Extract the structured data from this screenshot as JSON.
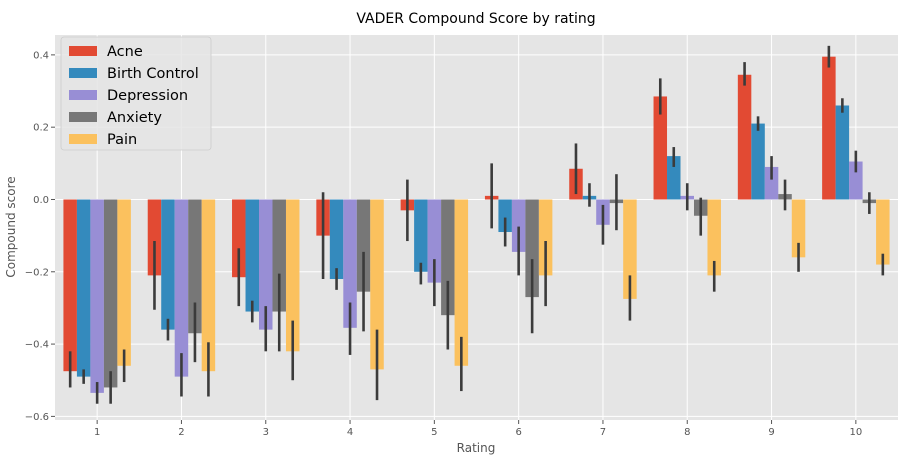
{
  "chart_data": {
    "type": "bar",
    "title": "VADER Compound Score by rating",
    "xlabel": "Rating",
    "ylabel": "Compound score",
    "categories": [
      "1",
      "2",
      "3",
      "4",
      "5",
      "6",
      "7",
      "8",
      "9",
      "10"
    ],
    "ylim": [
      -0.61,
      0.455
    ],
    "yticks": [
      -0.6,
      -0.4,
      -0.2,
      0.0,
      0.2,
      0.4
    ],
    "ytick_labels": [
      "−0.6",
      "−0.4",
      "−0.2",
      "0.0",
      "0.2",
      "0.4"
    ],
    "grid": true,
    "legend_position": "top-left",
    "series": [
      {
        "name": "Acne",
        "color": "#E24A33",
        "values": [
          -0.475,
          -0.21,
          -0.215,
          -0.1,
          -0.03,
          0.01,
          0.085,
          0.285,
          0.345,
          0.395
        ],
        "ci": [
          [
            -0.52,
            -0.42
          ],
          [
            -0.305,
            -0.115
          ],
          [
            -0.295,
            -0.135
          ],
          [
            -0.22,
            0.02
          ],
          [
            -0.115,
            0.055
          ],
          [
            -0.08,
            0.1
          ],
          [
            0.015,
            0.155
          ],
          [
            0.235,
            0.335
          ],
          [
            0.315,
            0.38
          ],
          [
            0.365,
            0.425
          ]
        ]
      },
      {
        "name": "Birth Control",
        "color": "#348ABD",
        "values": [
          -0.49,
          -0.36,
          -0.31,
          -0.22,
          -0.2,
          -0.09,
          0.01,
          0.12,
          0.21,
          0.26
        ],
        "ci": [
          [
            -0.51,
            -0.47
          ],
          [
            -0.39,
            -0.33
          ],
          [
            -0.34,
            -0.28
          ],
          [
            -0.25,
            -0.19
          ],
          [
            -0.235,
            -0.175
          ],
          [
            -0.13,
            -0.05
          ],
          [
            -0.02,
            0.045
          ],
          [
            0.09,
            0.145
          ],
          [
            0.19,
            0.23
          ],
          [
            0.24,
            0.28
          ]
        ]
      },
      {
        "name": "Depression",
        "color": "#988ED5",
        "values": [
          -0.535,
          -0.49,
          -0.36,
          -0.355,
          -0.23,
          -0.145,
          -0.07,
          0.01,
          0.09,
          0.105
        ],
        "ci": [
          [
            -0.565,
            -0.505
          ],
          [
            -0.545,
            -0.425
          ],
          [
            -0.42,
            -0.295
          ],
          [
            -0.43,
            -0.285
          ],
          [
            -0.295,
            -0.165
          ],
          [
            -0.21,
            -0.075
          ],
          [
            -0.125,
            -0.015
          ],
          [
            -0.03,
            0.045
          ],
          [
            0.055,
            0.12
          ],
          [
            0.075,
            0.135
          ]
        ]
      },
      {
        "name": "Anxiety",
        "color": "#777777",
        "values": [
          -0.52,
          -0.37,
          -0.31,
          -0.255,
          -0.32,
          -0.27,
          -0.01,
          -0.045,
          0.015,
          -0.01
        ],
        "ci": [
          [
            -0.565,
            -0.475
          ],
          [
            -0.45,
            -0.285
          ],
          [
            -0.42,
            -0.205
          ],
          [
            -0.365,
            -0.145
          ],
          [
            -0.415,
            -0.225
          ],
          [
            -0.37,
            -0.165
          ],
          [
            -0.085,
            0.07
          ],
          [
            -0.1,
            0.005
          ],
          [
            -0.03,
            0.055
          ],
          [
            -0.04,
            0.02
          ]
        ]
      },
      {
        "name": "Pain",
        "color": "#FBC15E",
        "values": [
          -0.46,
          -0.475,
          -0.42,
          -0.47,
          -0.46,
          -0.21,
          -0.275,
          -0.21,
          -0.16,
          -0.18
        ],
        "ci": [
          [
            -0.505,
            -0.415
          ],
          [
            -0.545,
            -0.395
          ],
          [
            -0.5,
            -0.335
          ],
          [
            -0.555,
            -0.36
          ],
          [
            -0.53,
            -0.38
          ],
          [
            -0.295,
            -0.115
          ],
          [
            -0.335,
            -0.21
          ],
          [
            -0.255,
            -0.17
          ],
          [
            -0.2,
            -0.12
          ],
          [
            -0.21,
            -0.15
          ]
        ]
      }
    ]
  }
}
